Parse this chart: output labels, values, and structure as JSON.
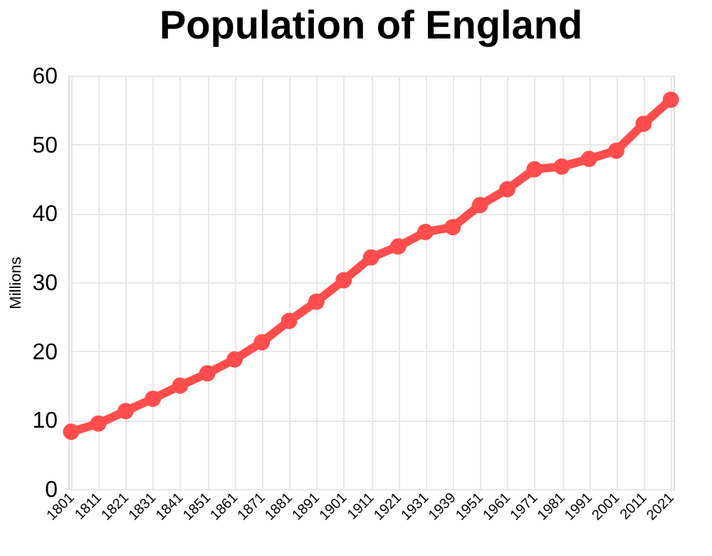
{
  "chart_data": {
    "type": "line",
    "title": "Population of England",
    "ylabel": "Millions",
    "categories": [
      "1801",
      "1811",
      "1821",
      "1831",
      "1841",
      "1851",
      "1861",
      "1871",
      "1881",
      "1891",
      "1901",
      "1911",
      "1921",
      "1931",
      "1939",
      "1951",
      "1961",
      "1971",
      "1981",
      "1991",
      "2001",
      "2011",
      "2021"
    ],
    "series": [
      {
        "color": "#ff4d4d",
        "values": [
          8.3,
          9.5,
          11.3,
          13.1,
          15.0,
          16.8,
          18.8,
          21.3,
          24.4,
          27.2,
          30.3,
          33.6,
          35.2,
          37.3,
          38.0,
          41.2,
          43.5,
          46.4,
          46.8,
          47.9,
          49.1,
          53.0,
          56.5
        ]
      }
    ],
    "ylim": [
      0,
      60
    ],
    "yticks": [
      0,
      10,
      20,
      30,
      40,
      50,
      60
    ],
    "grid": true,
    "marker": "circle",
    "line_style": "solid"
  }
}
